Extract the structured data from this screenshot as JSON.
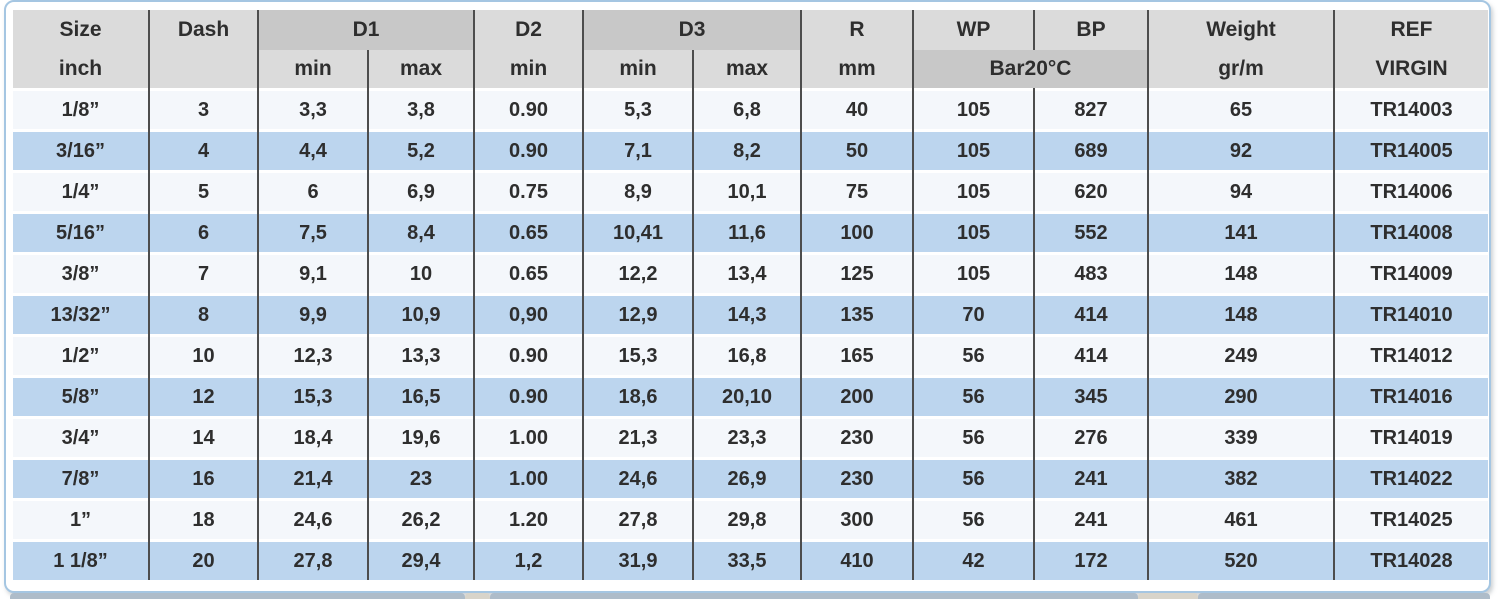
{
  "table": {
    "header": {
      "size1": "Size",
      "size2": "inch",
      "dash": "Dash",
      "d1": "D1",
      "d2": "D2",
      "d3": "D3",
      "min": "min",
      "max": "max",
      "r1": "R",
      "r2": "mm",
      "wp": "WP",
      "bp": "BP",
      "bar": "Bar20°C",
      "weight1": "Weight",
      "weight2": "gr/m",
      "ref1": "REF",
      "ref2": "VIRGIN"
    },
    "rows": [
      [
        "1/8”",
        "3",
        "3,3",
        "3,8",
        "0.90",
        "5,3",
        "6,8",
        "40",
        "105",
        "827",
        "65",
        "TR14003"
      ],
      [
        "3/16”",
        "4",
        "4,4",
        "5,2",
        "0.90",
        "7,1",
        "8,2",
        "50",
        "105",
        "689",
        "92",
        "TR14005"
      ],
      [
        "1/4”",
        "5",
        "6",
        "6,9",
        "0.75",
        "8,9",
        "10,1",
        "75",
        "105",
        "620",
        "94",
        "TR14006"
      ],
      [
        "5/16”",
        "6",
        "7,5",
        "8,4",
        "0.65",
        "10,41",
        "11,6",
        "100",
        "105",
        "552",
        "141",
        "TR14008"
      ],
      [
        "3/8”",
        "7",
        "9,1",
        "10",
        "0.65",
        "12,2",
        "13,4",
        "125",
        "105",
        "483",
        "148",
        "TR14009"
      ],
      [
        "13/32”",
        "8",
        "9,9",
        "10,9",
        "0,90",
        "12,9",
        "14,3",
        "135",
        "70",
        "414",
        "148",
        "TR14010"
      ],
      [
        "1/2”",
        "10",
        "12,3",
        "13,3",
        "0.90",
        "15,3",
        "16,8",
        "165",
        "56",
        "414",
        "249",
        "TR14012"
      ],
      [
        "5/8”",
        "12",
        "15,3",
        "16,5",
        "0.90",
        "18,6",
        "20,10",
        "200",
        "56",
        "345",
        "290",
        "TR14016"
      ],
      [
        "3/4”",
        "14",
        "18,4",
        "19,6",
        "1.00",
        "21,3",
        "23,3",
        "230",
        "56",
        "276",
        "339",
        "TR14019"
      ],
      [
        "7/8”",
        "16",
        "21,4",
        "23",
        "1.00",
        "24,6",
        "26,9",
        "230",
        "56",
        "241",
        "382",
        "TR14022"
      ],
      [
        "1”",
        "18",
        "24,6",
        "26,2",
        "1.20",
        "27,8",
        "29,8",
        "300",
        "56",
        "241",
        "461",
        "TR14025"
      ],
      [
        "1 1/8”",
        "20",
        "27,8",
        "29,4",
        "1,2",
        "31,9",
        "33,5",
        "410",
        "42",
        "172",
        "520",
        "TR14028"
      ]
    ]
  },
  "colors": {
    "row_blue": "#bcd5ee",
    "row_light": "#f4f7fb",
    "header_gray": "#dbdbdb",
    "header_dark_gray": "#c8c8c8",
    "divider": "#4d4d4d",
    "frame_blue": "#a5c6e2",
    "text": "#2e2e2e"
  }
}
